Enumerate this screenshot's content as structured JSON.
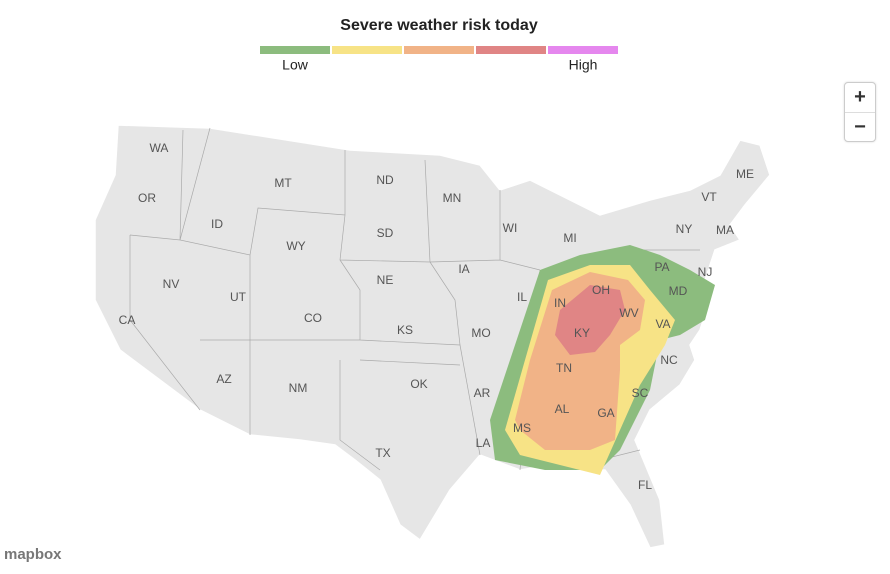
{
  "header": {
    "title": "Severe weather risk today"
  },
  "legend": {
    "colors": [
      "#8cbc7e",
      "#f7e386",
      "#f1b387",
      "#e08585",
      "#e587ee"
    ],
    "low_label": "Low",
    "high_label": "High"
  },
  "zoom": {
    "in": "+",
    "out": "−"
  },
  "attribution": "mapbox",
  "states": [
    "WA",
    "OR",
    "CA",
    "ID",
    "NV",
    "UT",
    "AZ",
    "MT",
    "WY",
    "CO",
    "NM",
    "ND",
    "SD",
    "NE",
    "KS",
    "OK",
    "TX",
    "MN",
    "IA",
    "MO",
    "AR",
    "LA",
    "WI",
    "IL",
    "MI",
    "IN",
    "OH",
    "KY",
    "TN",
    "MS",
    "AL",
    "GA",
    "FL",
    "SC",
    "NC",
    "VA",
    "WV",
    "PA",
    "NY",
    "VT",
    "ME",
    "MA",
    "NJ",
    "MD"
  ]
}
